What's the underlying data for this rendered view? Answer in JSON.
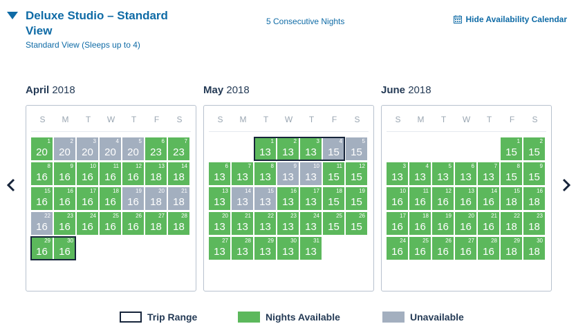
{
  "header": {
    "room_title": "Deluxe Studio – Standard View",
    "room_subtitle": "Standard View (Sleeps up to 4)",
    "nights": "5 Consecutive Nights",
    "hide_calendar": "Hide Availability Calendar"
  },
  "weekday_labels": [
    "S",
    "M",
    "T",
    "W",
    "T",
    "F",
    "S"
  ],
  "colors": {
    "available": "#5cb85c",
    "unavailable": "#a3afbf",
    "trip_border": "#16243a",
    "link": "#0f6ba6"
  },
  "months": [
    {
      "name": "April",
      "year": "2018",
      "first_weekday": 0,
      "days": [
        {
          "d": 1,
          "p": 20,
          "s": "g"
        },
        {
          "d": 2,
          "p": 20,
          "s": "u"
        },
        {
          "d": 3,
          "p": 20,
          "s": "u"
        },
        {
          "d": 4,
          "p": 20,
          "s": "u"
        },
        {
          "d": 5,
          "p": 20,
          "s": "u"
        },
        {
          "d": 6,
          "p": 23,
          "s": "g"
        },
        {
          "d": 7,
          "p": 23,
          "s": "g"
        },
        {
          "d": 8,
          "p": 16,
          "s": "g"
        },
        {
          "d": 9,
          "p": 16,
          "s": "g"
        },
        {
          "d": 10,
          "p": 16,
          "s": "g"
        },
        {
          "d": 11,
          "p": 16,
          "s": "g"
        },
        {
          "d": 12,
          "p": 16,
          "s": "g"
        },
        {
          "d": 13,
          "p": 18,
          "s": "g"
        },
        {
          "d": 14,
          "p": 18,
          "s": "g"
        },
        {
          "d": 15,
          "p": 16,
          "s": "g"
        },
        {
          "d": 16,
          "p": 16,
          "s": "g"
        },
        {
          "d": 17,
          "p": 16,
          "s": "g"
        },
        {
          "d": 18,
          "p": 16,
          "s": "g"
        },
        {
          "d": 19,
          "p": 16,
          "s": "u"
        },
        {
          "d": 20,
          "p": 18,
          "s": "u"
        },
        {
          "d": 21,
          "p": 18,
          "s": "u"
        },
        {
          "d": 22,
          "p": 16,
          "s": "u"
        },
        {
          "d": 23,
          "p": 16,
          "s": "g"
        },
        {
          "d": 24,
          "p": 16,
          "s": "g"
        },
        {
          "d": 25,
          "p": 16,
          "s": "g"
        },
        {
          "d": 26,
          "p": 16,
          "s": "g"
        },
        {
          "d": 27,
          "p": 18,
          "s": "g"
        },
        {
          "d": 28,
          "p": 18,
          "s": "g"
        },
        {
          "d": 29,
          "p": 16,
          "s": "g"
        },
        {
          "d": 30,
          "p": 16,
          "s": "g"
        }
      ],
      "trip": [
        29,
        30
      ]
    },
    {
      "name": "May",
      "year": "2018",
      "first_weekday": 2,
      "days": [
        {
          "d": 1,
          "p": 13,
          "s": "g"
        },
        {
          "d": 2,
          "p": 13,
          "s": "g"
        },
        {
          "d": 3,
          "p": 13,
          "s": "g"
        },
        {
          "d": 4,
          "p": 15,
          "s": "u"
        },
        {
          "d": 5,
          "p": 15,
          "s": "u"
        },
        {
          "d": 6,
          "p": 13,
          "s": "g"
        },
        {
          "d": 7,
          "p": 13,
          "s": "g"
        },
        {
          "d": 8,
          "p": 13,
          "s": "g"
        },
        {
          "d": 9,
          "p": 13,
          "s": "u"
        },
        {
          "d": 10,
          "p": 13,
          "s": "u"
        },
        {
          "d": 11,
          "p": 15,
          "s": "g"
        },
        {
          "d": 12,
          "p": 15,
          "s": "g"
        },
        {
          "d": 13,
          "p": 13,
          "s": "g"
        },
        {
          "d": 14,
          "p": 13,
          "s": "u"
        },
        {
          "d": 15,
          "p": 13,
          "s": "u"
        },
        {
          "d": 16,
          "p": 13,
          "s": "g"
        },
        {
          "d": 17,
          "p": 13,
          "s": "g"
        },
        {
          "d": 18,
          "p": 15,
          "s": "g"
        },
        {
          "d": 19,
          "p": 15,
          "s": "g"
        },
        {
          "d": 20,
          "p": 13,
          "s": "g"
        },
        {
          "d": 21,
          "p": 13,
          "s": "g"
        },
        {
          "d": 22,
          "p": 13,
          "s": "g"
        },
        {
          "d": 23,
          "p": 13,
          "s": "g"
        },
        {
          "d": 24,
          "p": 13,
          "s": "g"
        },
        {
          "d": 25,
          "p": 15,
          "s": "g"
        },
        {
          "d": 26,
          "p": 15,
          "s": "g"
        },
        {
          "d": 27,
          "p": 13,
          "s": "g"
        },
        {
          "d": 28,
          "p": 13,
          "s": "g"
        },
        {
          "d": 29,
          "p": 13,
          "s": "g"
        },
        {
          "d": 30,
          "p": 13,
          "s": "g"
        },
        {
          "d": 31,
          "p": 13,
          "s": "g"
        }
      ],
      "trip": [
        1,
        2,
        3,
        4
      ]
    },
    {
      "name": "June",
      "year": "2018",
      "first_weekday": 5,
      "days": [
        {
          "d": 1,
          "p": 15,
          "s": "g"
        },
        {
          "d": 2,
          "p": 15,
          "s": "g"
        },
        {
          "d": 3,
          "p": 13,
          "s": "g"
        },
        {
          "d": 4,
          "p": 13,
          "s": "g"
        },
        {
          "d": 5,
          "p": 13,
          "s": "g"
        },
        {
          "d": 6,
          "p": 13,
          "s": "g"
        },
        {
          "d": 7,
          "p": 13,
          "s": "g"
        },
        {
          "d": 8,
          "p": 15,
          "s": "g"
        },
        {
          "d": 9,
          "p": 15,
          "s": "g"
        },
        {
          "d": 10,
          "p": 16,
          "s": "g"
        },
        {
          "d": 11,
          "p": 16,
          "s": "g"
        },
        {
          "d": 12,
          "p": 16,
          "s": "g"
        },
        {
          "d": 13,
          "p": 16,
          "s": "g"
        },
        {
          "d": 14,
          "p": 16,
          "s": "g"
        },
        {
          "d": 15,
          "p": 18,
          "s": "g"
        },
        {
          "d": 16,
          "p": 18,
          "s": "g"
        },
        {
          "d": 17,
          "p": 16,
          "s": "g"
        },
        {
          "d": 18,
          "p": 16,
          "s": "g"
        },
        {
          "d": 19,
          "p": 16,
          "s": "g"
        },
        {
          "d": 20,
          "p": 16,
          "s": "g"
        },
        {
          "d": 21,
          "p": 16,
          "s": "g"
        },
        {
          "d": 22,
          "p": 18,
          "s": "g"
        },
        {
          "d": 23,
          "p": 18,
          "s": "g"
        },
        {
          "d": 24,
          "p": 16,
          "s": "g"
        },
        {
          "d": 25,
          "p": 16,
          "s": "g"
        },
        {
          "d": 26,
          "p": 16,
          "s": "g"
        },
        {
          "d": 27,
          "p": 16,
          "s": "g"
        },
        {
          "d": 28,
          "p": 16,
          "s": "g"
        },
        {
          "d": 29,
          "p": 18,
          "s": "g"
        },
        {
          "d": 30,
          "p": 18,
          "s": "g"
        }
      ],
      "trip": []
    }
  ],
  "nav": {
    "prev_icon": "chevron-left-icon",
    "next_icon": "chevron-right-icon"
  },
  "legend": {
    "trip_range": "Trip Range",
    "nights_available": "Nights Available",
    "unavailable": "Unavailable"
  }
}
